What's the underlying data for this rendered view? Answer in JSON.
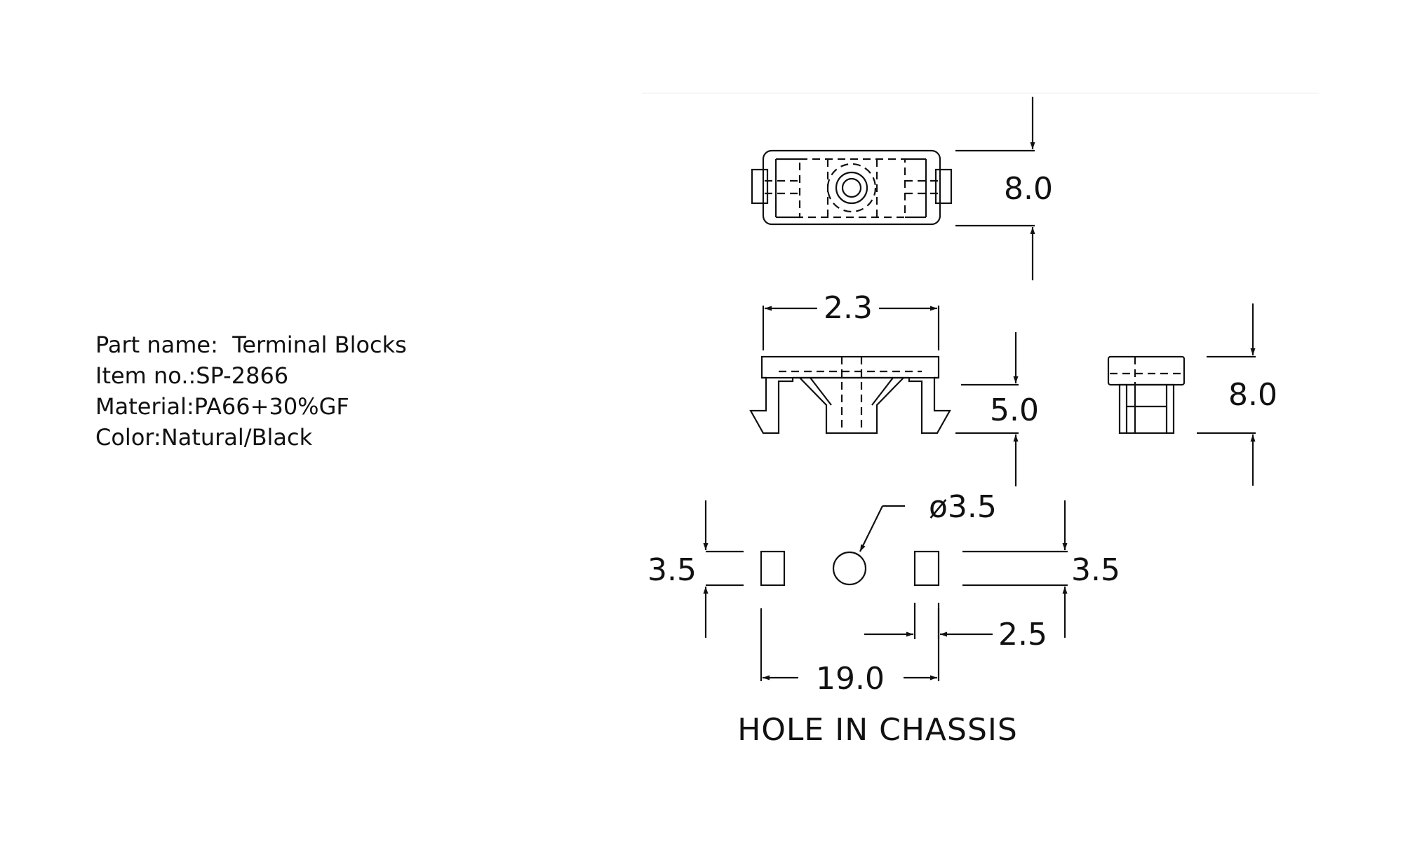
{
  "spec": {
    "part_name": "Part name:  Terminal Blocks",
    "item_no": "Item no.:SP-2866",
    "material": "Material:PA66+30%GF",
    "color": "Color:Natural/Black"
  },
  "dimensions": {
    "top_view_height": "8.0",
    "front_width": "2.3",
    "front_height": "5.0",
    "side_height": "8.0",
    "hole_diameter": "ø3.5",
    "hole_left_height": "3.5",
    "hole_right_height": "3.5",
    "slot_width": "2.5",
    "hole_spacing": "19.0"
  },
  "caption": "HOLE IN CHASSIS"
}
